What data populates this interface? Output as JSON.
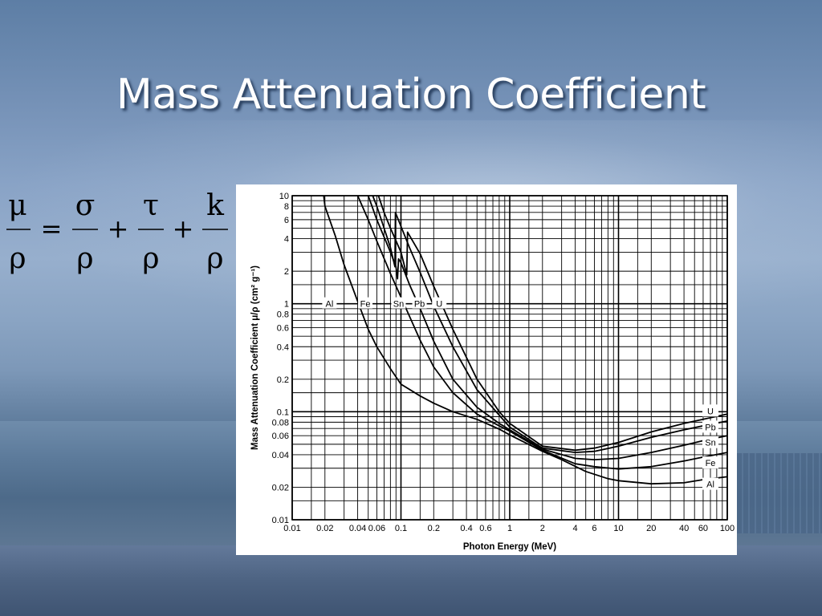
{
  "slide": {
    "title": "Mass Attenuation Coefficient"
  },
  "equation": {
    "lhs_num": "μ",
    "lhs_den": "ρ",
    "eq": "=",
    "t1_num": "σ",
    "t1_den": "ρ",
    "plus1": "+",
    "t2_num": "τ",
    "t2_den": "ρ",
    "plus2": "+",
    "t3_num": "k",
    "t3_den": "ρ"
  },
  "chart_data": {
    "type": "line",
    "xscale": "log",
    "yscale": "log",
    "xlim": [
      0.01,
      100
    ],
    "ylim": [
      0.01,
      10
    ],
    "grid": true,
    "xlabel": "Photon Energy (MeV)",
    "ylabel": "Mass Attenuation Coefficient μ/ρ (cm² g⁻¹)",
    "x_ticks": [
      {
        "v": 0.01,
        "t": "0.01"
      },
      {
        "v": 0.02,
        "t": "0.02"
      },
      {
        "v": 0.04,
        "t": "0.04"
      },
      {
        "v": 0.06,
        "t": "0.06"
      },
      {
        "v": 0.1,
        "t": "0.1"
      },
      {
        "v": 0.2,
        "t": "0.2"
      },
      {
        "v": 0.4,
        "t": "0.4"
      },
      {
        "v": 0.6,
        "t": "0.6"
      },
      {
        "v": 1,
        "t": "1"
      },
      {
        "v": 2,
        "t": "2"
      },
      {
        "v": 4,
        "t": "4"
      },
      {
        "v": 6,
        "t": "6"
      },
      {
        "v": 10,
        "t": "10"
      },
      {
        "v": 20,
        "t": "20"
      },
      {
        "v": 40,
        "t": "40"
      },
      {
        "v": 60,
        "t": "60"
      },
      {
        "v": 100,
        "t": "100"
      }
    ],
    "y_ticks": [
      {
        "v": 0.01,
        "t": "0.01"
      },
      {
        "v": 0.02,
        "t": "0.02"
      },
      {
        "v": 0.04,
        "t": "0.04"
      },
      {
        "v": 0.06,
        "t": "0.06"
      },
      {
        "v": 0.08,
        "t": "0.08"
      },
      {
        "v": 0.1,
        "t": "0.1"
      },
      {
        "v": 0.2,
        "t": "0.2"
      },
      {
        "v": 0.4,
        "t": "0.4"
      },
      {
        "v": 0.6,
        "t": "0.6"
      },
      {
        "v": 0.8,
        "t": "0.8"
      },
      {
        "v": 1,
        "t": "1"
      },
      {
        "v": 2,
        "t": "2"
      },
      {
        "v": 4,
        "t": "4"
      },
      {
        "v": 6,
        "t": "6"
      },
      {
        "v": 8,
        "t": "8"
      },
      {
        "v": 10,
        "t": "10"
      }
    ],
    "grid_x": [
      0.01,
      0.015,
      0.02,
      0.03,
      0.04,
      0.05,
      0.06,
      0.07,
      0.08,
      0.09,
      0.1,
      0.15,
      0.2,
      0.3,
      0.4,
      0.5,
      0.6,
      0.7,
      0.8,
      0.9,
      1,
      1.5,
      2,
      3,
      4,
      5,
      6,
      7,
      8,
      9,
      10,
      15,
      20,
      30,
      40,
      50,
      60,
      70,
      80,
      90,
      100
    ],
    "grid_y": [
      0.01,
      0.015,
      0.02,
      0.03,
      0.04,
      0.05,
      0.06,
      0.07,
      0.08,
      0.09,
      0.1,
      0.15,
      0.2,
      0.3,
      0.4,
      0.5,
      0.6,
      0.7,
      0.8,
      0.9,
      1,
      1.5,
      2,
      3,
      4,
      5,
      6,
      7,
      8,
      9,
      10
    ],
    "series": [
      {
        "name": "Al",
        "points": [
          [
            0.0195,
            10
          ],
          [
            0.02,
            8
          ],
          [
            0.025,
            4.2
          ],
          [
            0.03,
            2.3
          ],
          [
            0.04,
            1.05
          ],
          [
            0.05,
            0.58
          ],
          [
            0.06,
            0.4
          ],
          [
            0.08,
            0.25
          ],
          [
            0.1,
            0.18
          ],
          [
            0.15,
            0.14
          ],
          [
            0.2,
            0.12
          ],
          [
            0.3,
            0.1
          ],
          [
            0.5,
            0.085
          ],
          [
            0.8,
            0.069
          ],
          [
            1,
            0.061
          ],
          [
            2,
            0.043
          ],
          [
            3,
            0.036
          ],
          [
            5,
            0.028
          ],
          [
            8,
            0.024
          ],
          [
            10,
            0.023
          ],
          [
            20,
            0.0215
          ],
          [
            40,
            0.022
          ],
          [
            60,
            0.0235
          ],
          [
            100,
            0.025
          ]
        ]
      },
      {
        "name": "Fe",
        "points": [
          [
            0.04,
            10
          ],
          [
            0.05,
            6
          ],
          [
            0.06,
            3.8
          ],
          [
            0.08,
            1.9
          ],
          [
            0.1,
            1.15
          ],
          [
            0.15,
            0.46
          ],
          [
            0.2,
            0.26
          ],
          [
            0.3,
            0.15
          ],
          [
            0.5,
            0.095
          ],
          [
            0.8,
            0.074
          ],
          [
            1,
            0.066
          ],
          [
            2,
            0.044
          ],
          [
            4,
            0.033
          ],
          [
            6,
            0.031
          ],
          [
            10,
            0.0295
          ],
          [
            20,
            0.031
          ],
          [
            40,
            0.035
          ],
          [
            60,
            0.038
          ],
          [
            100,
            0.042
          ]
        ]
      },
      {
        "name": "Sn",
        "points": [
          [
            0.05,
            10
          ],
          [
            0.06,
            6
          ],
          [
            0.08,
            3
          ],
          [
            0.09,
            2.2
          ],
          [
            0.093,
            1.7
          ],
          [
            0.095,
            2.6
          ],
          [
            0.1,
            2.4
          ],
          [
            0.12,
            1.5
          ],
          [
            0.15,
            0.9
          ],
          [
            0.2,
            0.45
          ],
          [
            0.3,
            0.2
          ],
          [
            0.5,
            0.11
          ],
          [
            0.8,
            0.078
          ],
          [
            1,
            0.068
          ],
          [
            2,
            0.045
          ],
          [
            4,
            0.037
          ],
          [
            6,
            0.036
          ],
          [
            10,
            0.037
          ],
          [
            20,
            0.042
          ],
          [
            40,
            0.049
          ],
          [
            60,
            0.054
          ],
          [
            100,
            0.06
          ]
        ]
      },
      {
        "name": "Pb",
        "points": [
          [
            0.055,
            10
          ],
          [
            0.06,
            8
          ],
          [
            0.07,
            5
          ],
          [
            0.08,
            3.3
          ],
          [
            0.088,
            2.2
          ],
          [
            0.089,
            7.0
          ],
          [
            0.1,
            5.2
          ],
          [
            0.12,
            3.3
          ],
          [
            0.15,
            1.95
          ],
          [
            0.2,
            0.95
          ],
          [
            0.3,
            0.4
          ],
          [
            0.5,
            0.16
          ],
          [
            0.8,
            0.093
          ],
          [
            1,
            0.072
          ],
          [
            2,
            0.046
          ],
          [
            4,
            0.042
          ],
          [
            6,
            0.043
          ],
          [
            10,
            0.048
          ],
          [
            20,
            0.058
          ],
          [
            40,
            0.068
          ],
          [
            60,
            0.074
          ],
          [
            100,
            0.082
          ]
        ]
      },
      {
        "name": "U",
        "points": [
          [
            0.062,
            10
          ],
          [
            0.07,
            7
          ],
          [
            0.08,
            5
          ],
          [
            0.1,
            3.0
          ],
          [
            0.113,
            1.85
          ],
          [
            0.115,
            4.6
          ],
          [
            0.15,
            2.9
          ],
          [
            0.2,
            1.45
          ],
          [
            0.3,
            0.58
          ],
          [
            0.5,
            0.2
          ],
          [
            0.8,
            0.1
          ],
          [
            1,
            0.078
          ],
          [
            2,
            0.048
          ],
          [
            4,
            0.044
          ],
          [
            6,
            0.046
          ],
          [
            10,
            0.052
          ],
          [
            20,
            0.065
          ],
          [
            40,
            0.078
          ],
          [
            60,
            0.085
          ],
          [
            100,
            0.095
          ]
        ]
      }
    ],
    "inline_labels": [
      {
        "text": "Al",
        "x": 0.022,
        "y": 1.0
      },
      {
        "text": "Fe",
        "x": 0.047,
        "y": 1.0
      },
      {
        "text": "Sn",
        "x": 0.095,
        "y": 1.0
      },
      {
        "text": "Pb",
        "x": 0.148,
        "y": 1.0
      },
      {
        "text": "U",
        "x": 0.225,
        "y": 1.0
      }
    ],
    "right_labels": [
      {
        "text": "U",
        "y": 0.1
      },
      {
        "text": "Pb",
        "y": 0.071
      },
      {
        "text": "Sn",
        "y": 0.051
      },
      {
        "text": "Fe",
        "y": 0.033
      },
      {
        "text": "Al",
        "y": 0.021
      }
    ]
  }
}
